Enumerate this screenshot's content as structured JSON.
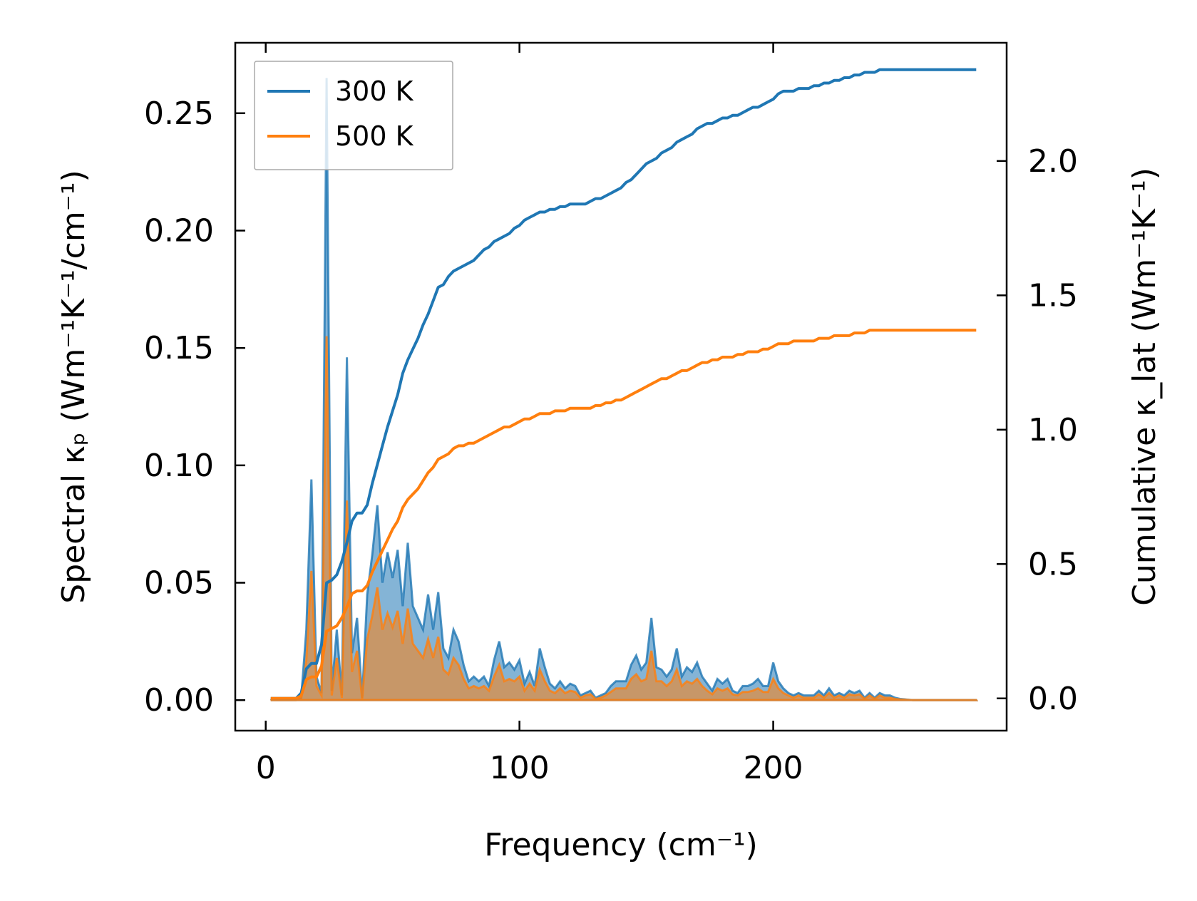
{
  "chart_data": {
    "type": "area+line",
    "title": "",
    "xlabel": "Frequency (cm⁻¹)",
    "ylabel_left": "Spectral κₚ (Wm⁻¹K⁻¹/cm⁻¹)",
    "ylabel_right": "Cumulative κ_lat (Wm⁻¹K⁻¹)",
    "xlim": [
      -12,
      292
    ],
    "ylim_left": [
      -0.013,
      0.28
    ],
    "ylim_right": [
      -0.12,
      2.44
    ],
    "xticks": [
      0,
      100,
      200
    ],
    "xtick_labels": [
      "0",
      "100",
      "200"
    ],
    "yticks_left": [
      0.0,
      0.05,
      0.1,
      0.15,
      0.2,
      0.25
    ],
    "ytick_labels_left": [
      "0.00",
      "0.05",
      "0.10",
      "0.15",
      "0.20",
      "0.25"
    ],
    "yticks_right": [
      0.0,
      0.5,
      1.0,
      1.5,
      2.0
    ],
    "ytick_labels_right": [
      "0.0",
      "0.5",
      "1.0",
      "1.5",
      "2.0"
    ],
    "legend": {
      "position": "top-left",
      "entries": [
        "300 K",
        "500 K"
      ]
    },
    "colors": {
      "t300": "#1f77b4",
      "t500": "#ff7f0e"
    },
    "spectral": {
      "x": [
        2,
        12,
        14,
        16,
        18,
        20,
        22,
        24,
        26,
        28,
        30,
        32,
        34,
        36,
        38,
        40,
        42,
        44,
        46,
        48,
        50,
        52,
        54,
        56,
        58,
        60,
        62,
        64,
        66,
        68,
        70,
        72,
        74,
        76,
        78,
        80,
        82,
        84,
        86,
        88,
        90,
        92,
        94,
        96,
        98,
        100,
        102,
        104,
        106,
        108,
        110,
        112,
        114,
        116,
        118,
        120,
        122,
        124,
        126,
        128,
        130,
        132,
        134,
        136,
        138,
        140,
        142,
        144,
        146,
        148,
        150,
        152,
        154,
        156,
        158,
        160,
        162,
        164,
        166,
        168,
        170,
        172,
        174,
        176,
        178,
        180,
        182,
        184,
        186,
        188,
        190,
        192,
        194,
        196,
        198,
        200,
        202,
        204,
        206,
        208,
        210,
        212,
        214,
        216,
        218,
        220,
        222,
        224,
        226,
        228,
        230,
        232,
        234,
        236,
        238,
        240,
        242,
        244,
        246,
        248,
        250,
        255,
        260,
        270,
        280
      ],
      "series": [
        {
          "name": "300 K",
          "values": [
            0,
            0,
            0.001,
            0.03,
            0.094,
            0.01,
            0.003,
            0.265,
            0.004,
            0.03,
            0.002,
            0.146,
            0.02,
            0.035,
            0.001,
            0.045,
            0.062,
            0.083,
            0.05,
            0.063,
            0.052,
            0.064,
            0.04,
            0.067,
            0.04,
            0.035,
            0.03,
            0.045,
            0.03,
            0.046,
            0.022,
            0.018,
            0.03,
            0.025,
            0.015,
            0.008,
            0.01,
            0.008,
            0.01,
            0.006,
            0.017,
            0.025,
            0.014,
            0.016,
            0.013,
            0.017,
            0.007,
            0.012,
            0.006,
            0.022,
            0.014,
            0.007,
            0.005,
            0.008,
            0.005,
            0.007,
            0.006,
            0.002,
            0.003,
            0.004,
            0.001,
            0.002,
            0.003,
            0.006,
            0.008,
            0.008,
            0.008,
            0.015,
            0.019,
            0.013,
            0.016,
            0.035,
            0.014,
            0.013,
            0.01,
            0.013,
            0.022,
            0.01,
            0.014,
            0.012,
            0.016,
            0.01,
            0.007,
            0.004,
            0.009,
            0.007,
            0.009,
            0.004,
            0.003,
            0.006,
            0.006,
            0.007,
            0.009,
            0.006,
            0.006,
            0.016,
            0.008,
            0.005,
            0.003,
            0.002,
            0.003,
            0.002,
            0.002,
            0.002,
            0.004,
            0.002,
            0.005,
            0.002,
            0.003,
            0.002,
            0.004,
            0.003,
            0.004,
            0.001,
            0.003,
            0.001,
            0.003,
            0.002,
            0.002,
            0.001,
            0.0005,
            0,
            0,
            0,
            0
          ]
        },
        {
          "name": "500 K",
          "values": [
            0,
            0,
            0.0005,
            0.017,
            0.055,
            0.006,
            0.002,
            0.155,
            0.002,
            0.018,
            0.001,
            0.085,
            0.012,
            0.021,
            0.0005,
            0.026,
            0.036,
            0.048,
            0.03,
            0.037,
            0.031,
            0.038,
            0.024,
            0.039,
            0.024,
            0.021,
            0.018,
            0.026,
            0.018,
            0.027,
            0.013,
            0.011,
            0.018,
            0.015,
            0.009,
            0.005,
            0.006,
            0.005,
            0.006,
            0.004,
            0.01,
            0.015,
            0.008,
            0.009,
            0.008,
            0.01,
            0.004,
            0.007,
            0.004,
            0.013,
            0.008,
            0.004,
            0.003,
            0.005,
            0.003,
            0.004,
            0.0035,
            0.001,
            0.002,
            0.0025,
            0.0005,
            0.001,
            0.002,
            0.0035,
            0.005,
            0.005,
            0.005,
            0.009,
            0.011,
            0.008,
            0.009,
            0.021,
            0.008,
            0.008,
            0.006,
            0.008,
            0.013,
            0.006,
            0.008,
            0.007,
            0.009,
            0.006,
            0.004,
            0.0025,
            0.005,
            0.004,
            0.005,
            0.0025,
            0.002,
            0.0035,
            0.0035,
            0.004,
            0.005,
            0.0035,
            0.0035,
            0.009,
            0.005,
            0.003,
            0.002,
            0.001,
            0.002,
            0.001,
            0.001,
            0.001,
            0.0025,
            0.001,
            0.003,
            0.001,
            0.002,
            0.001,
            0.0025,
            0.002,
            0.0025,
            0.0005,
            0.002,
            0.0005,
            0.002,
            0.001,
            0.001,
            0.0005,
            0.0003,
            0,
            0,
            0,
            0
          ]
        }
      ]
    },
    "cumulative": {
      "series": [
        {
          "name": "300 K",
          "x": [
            2,
            12,
            14,
            16,
            18,
            20,
            22,
            24,
            26,
            28,
            30,
            32,
            34,
            36,
            38,
            40,
            42,
            44,
            46,
            48,
            50,
            52,
            54,
            56,
            58,
            60,
            62,
            64,
            66,
            68,
            70,
            72,
            74,
            76,
            78,
            80,
            82,
            84,
            86,
            88,
            90,
            92,
            94,
            96,
            98,
            100,
            102,
            104,
            106,
            108,
            110,
            112,
            114,
            116,
            118,
            120,
            122,
            124,
            126,
            128,
            130,
            132,
            134,
            136,
            138,
            140,
            142,
            144,
            146,
            148,
            150,
            152,
            154,
            156,
            158,
            160,
            162,
            164,
            166,
            168,
            170,
            172,
            174,
            176,
            178,
            180,
            182,
            184,
            186,
            188,
            190,
            192,
            194,
            196,
            198,
            200,
            202,
            204,
            206,
            208,
            210,
            212,
            214,
            216,
            218,
            220,
            222,
            224,
            226,
            228,
            230,
            232,
            234,
            236,
            238,
            240,
            242,
            244,
            246,
            248,
            250,
            280
          ],
          "values": [
            0,
            0,
            0.02,
            0.11,
            0.13,
            0.13,
            0.2,
            0.43,
            0.44,
            0.46,
            0.51,
            0.58,
            0.66,
            0.69,
            0.69,
            0.72,
            0.8,
            0.87,
            0.94,
            1.01,
            1.07,
            1.13,
            1.21,
            1.26,
            1.3,
            1.34,
            1.39,
            1.43,
            1.48,
            1.53,
            1.54,
            1.57,
            1.59,
            1.6,
            1.61,
            1.62,
            1.63,
            1.65,
            1.67,
            1.68,
            1.7,
            1.71,
            1.72,
            1.73,
            1.75,
            1.76,
            1.78,
            1.79,
            1.8,
            1.81,
            1.81,
            1.82,
            1.82,
            1.83,
            1.83,
            1.84,
            1.84,
            1.84,
            1.84,
            1.85,
            1.86,
            1.86,
            1.87,
            1.88,
            1.89,
            1.9,
            1.92,
            1.93,
            1.95,
            1.97,
            1.99,
            2.0,
            2.01,
            2.03,
            2.04,
            2.05,
            2.07,
            2.08,
            2.09,
            2.1,
            2.12,
            2.13,
            2.14,
            2.14,
            2.15,
            2.16,
            2.16,
            2.17,
            2.17,
            2.18,
            2.19,
            2.2,
            2.2,
            2.21,
            2.22,
            2.23,
            2.25,
            2.26,
            2.26,
            2.26,
            2.27,
            2.27,
            2.27,
            2.28,
            2.28,
            2.29,
            2.29,
            2.3,
            2.3,
            2.31,
            2.31,
            2.32,
            2.32,
            2.33,
            2.33,
            2.33,
            2.34,
            2.34,
            2.34,
            2.34,
            2.34,
            2.34
          ]
        },
        {
          "name": "500 K",
          "x": [
            2,
            12,
            14,
            16,
            18,
            20,
            22,
            24,
            26,
            28,
            30,
            32,
            34,
            36,
            38,
            40,
            42,
            44,
            46,
            48,
            50,
            52,
            54,
            56,
            58,
            60,
            62,
            64,
            66,
            68,
            70,
            72,
            74,
            76,
            78,
            80,
            82,
            84,
            86,
            88,
            90,
            92,
            94,
            96,
            98,
            100,
            102,
            104,
            106,
            108,
            110,
            112,
            114,
            116,
            118,
            120,
            122,
            124,
            126,
            128,
            130,
            132,
            134,
            136,
            138,
            140,
            142,
            144,
            146,
            148,
            150,
            152,
            154,
            156,
            158,
            160,
            162,
            164,
            166,
            168,
            170,
            172,
            174,
            176,
            178,
            180,
            182,
            184,
            186,
            188,
            190,
            192,
            194,
            196,
            198,
            200,
            202,
            204,
            206,
            208,
            210,
            212,
            214,
            216,
            218,
            220,
            222,
            224,
            226,
            228,
            230,
            232,
            234,
            236,
            238,
            240,
            242,
            244,
            246,
            248,
            250,
            280
          ],
          "values": [
            0,
            0,
            0.01,
            0.07,
            0.08,
            0.08,
            0.12,
            0.25,
            0.26,
            0.27,
            0.3,
            0.34,
            0.39,
            0.4,
            0.4,
            0.42,
            0.47,
            0.51,
            0.55,
            0.59,
            0.63,
            0.66,
            0.71,
            0.74,
            0.76,
            0.78,
            0.81,
            0.84,
            0.86,
            0.89,
            0.9,
            0.91,
            0.93,
            0.94,
            0.94,
            0.95,
            0.95,
            0.96,
            0.97,
            0.98,
            0.99,
            1.0,
            1.01,
            1.01,
            1.02,
            1.03,
            1.04,
            1.04,
            1.05,
            1.06,
            1.06,
            1.06,
            1.07,
            1.07,
            1.07,
            1.08,
            1.08,
            1.08,
            1.08,
            1.08,
            1.09,
            1.09,
            1.1,
            1.1,
            1.11,
            1.11,
            1.12,
            1.13,
            1.14,
            1.15,
            1.16,
            1.17,
            1.18,
            1.19,
            1.19,
            1.2,
            1.21,
            1.22,
            1.22,
            1.23,
            1.24,
            1.25,
            1.25,
            1.26,
            1.26,
            1.27,
            1.27,
            1.27,
            1.28,
            1.28,
            1.29,
            1.29,
            1.29,
            1.3,
            1.3,
            1.31,
            1.32,
            1.32,
            1.32,
            1.33,
            1.33,
            1.33,
            1.33,
            1.33,
            1.34,
            1.34,
            1.34,
            1.35,
            1.35,
            1.35,
            1.35,
            1.36,
            1.36,
            1.36,
            1.37,
            1.37,
            1.37,
            1.37,
            1.37,
            1.37,
            1.37,
            1.37
          ]
        }
      ]
    }
  }
}
